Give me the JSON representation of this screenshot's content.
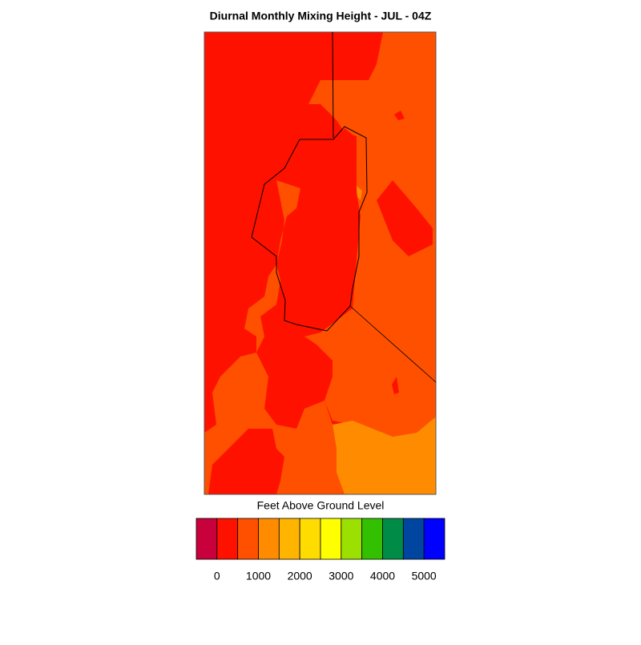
{
  "title": "Diurnal Monthly Mixing Height - JUL - 04Z",
  "colorbar": {
    "label": "Feet Above Ground Level",
    "colors": [
      "#c8003c",
      "#ff1100",
      "#ff5000",
      "#ff8c00",
      "#ffb400",
      "#ffdc00",
      "#ffff00",
      "#9be000",
      "#32c000",
      "#008c46",
      "#0046a0",
      "#0000ff"
    ],
    "ticks": [
      0,
      1000,
      2000,
      3000,
      4000,
      5000
    ]
  }
}
